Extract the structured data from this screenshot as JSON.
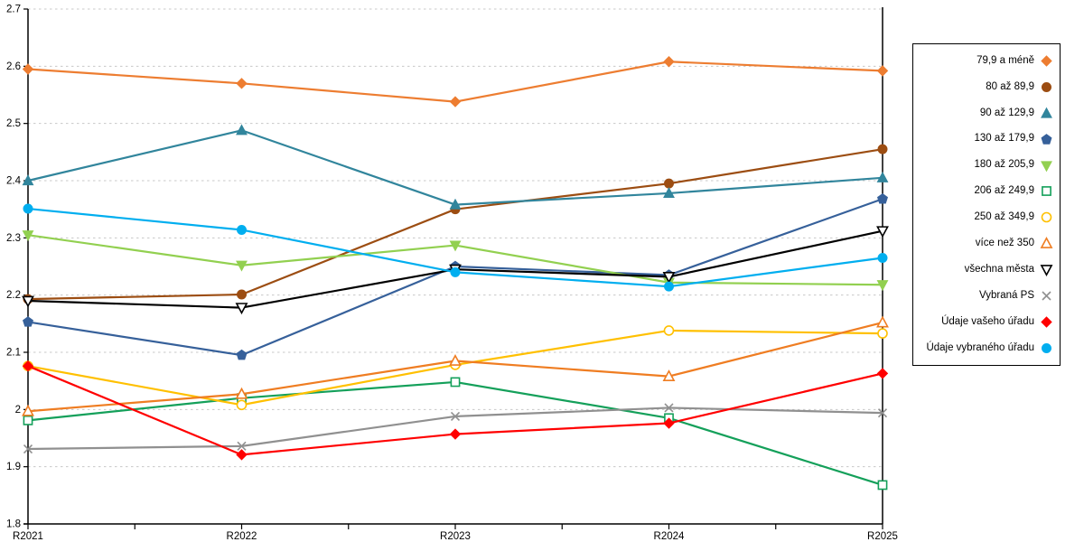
{
  "chart_data": {
    "type": "line",
    "title": "",
    "xlabel": "",
    "ylabel": "",
    "x": [
      "R2021",
      "R2022",
      "R2023",
      "R2024",
      "R2025"
    ],
    "ylim": [
      1.8,
      2.7
    ],
    "ytick_step": 0.1,
    "ytick_labels": [
      "2.7",
      "2.6",
      "2.5",
      "2.4",
      "2.3",
      "2.2",
      "2.1",
      "2",
      "1.9",
      "1.8"
    ],
    "grid": "horizontal-dashed",
    "gridline_color": "#c8c8c8",
    "axis_color": "#000000",
    "legend_position": "right",
    "series": [
      {
        "name": "79,9 a méně",
        "color": "#ED7D31",
        "marker": "diamond",
        "fill": "solid",
        "values": [
          2.595,
          2.57,
          2.538,
          2.608,
          2.592
        ]
      },
      {
        "name": "80 až 89,9",
        "color": "#9C4D12",
        "marker": "circle",
        "fill": "solid",
        "values": [
          2.193,
          2.201,
          2.35,
          2.395,
          2.455
        ]
      },
      {
        "name": "90 až 129,9",
        "color": "#31859C",
        "marker": "triangle-up",
        "fill": "solid",
        "values": [
          2.4,
          2.488,
          2.358,
          2.378,
          2.405
        ]
      },
      {
        "name": "130 až 179,9",
        "color": "#36609A",
        "marker": "pentagon",
        "fill": "solid",
        "values": [
          2.153,
          2.095,
          2.25,
          2.235,
          2.368
        ]
      },
      {
        "name": "180 až 205,9",
        "color": "#92D050",
        "marker": "triangle-down",
        "fill": "solid",
        "values": [
          2.305,
          2.252,
          2.287,
          2.222,
          2.218
        ]
      },
      {
        "name": "206 až 249,9",
        "color": "#14A05A",
        "marker": "square",
        "fill": "open",
        "values": [
          1.981,
          2.02,
          2.048,
          1.985,
          1.868
        ]
      },
      {
        "name": "250 až 349,9",
        "color": "#FFC000",
        "marker": "circle",
        "fill": "open",
        "values": [
          2.076,
          2.008,
          2.078,
          2.138,
          2.133
        ]
      },
      {
        "name": "více než 350",
        "color": "#EF7D22",
        "marker": "triangle-up",
        "fill": "open",
        "values": [
          1.997,
          2.027,
          2.085,
          2.058,
          2.152
        ]
      },
      {
        "name": "všechna města",
        "color": "#000000",
        "marker": "triangle-down",
        "fill": "open",
        "values": [
          2.19,
          2.178,
          2.245,
          2.232,
          2.312
        ]
      },
      {
        "name": "Vybraná PS",
        "color": "#909090",
        "marker": "x",
        "fill": "open",
        "values": [
          1.931,
          1.936,
          1.988,
          2.003,
          1.994
        ]
      },
      {
        "name": "Údaje vašeho úřadu",
        "color": "#FF0000",
        "marker": "diamond",
        "fill": "solid",
        "values": [
          2.076,
          1.921,
          1.957,
          1.976,
          2.063
        ]
      },
      {
        "name": "Údaje vybraného úřadu",
        "color": "#00AEEF",
        "marker": "circle",
        "fill": "solid",
        "values": [
          2.351,
          2.314,
          2.24,
          2.215,
          2.265
        ]
      }
    ]
  }
}
